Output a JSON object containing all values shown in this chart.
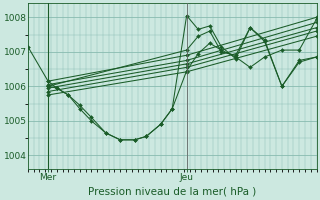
{
  "title": "Pression niveau de la mer( hPa )",
  "xlabel_mer": "Mer",
  "xlabel_jeu": "Jeu",
  "background_color": "#cce8e0",
  "grid_color": "#88bbb0",
  "line_color": "#1a5c28",
  "ylim": [
    1003.6,
    1008.4
  ],
  "yticks": [
    1004,
    1005,
    1006,
    1007,
    1008
  ],
  "xlim": [
    0,
    100
  ],
  "mer_x": 7,
  "jeu_x": 55,
  "lines": [
    {
      "x": [
        0,
        7,
        10,
        14,
        18,
        22,
        27,
        32,
        37,
        41,
        46,
        50,
        55,
        59,
        63,
        67,
        72,
        77,
        82,
        88,
        94,
        100
      ],
      "y": [
        1007.15,
        1006.15,
        1005.95,
        1005.75,
        1005.35,
        1005.0,
        1004.65,
        1004.45,
        1004.45,
        1004.55,
        1004.9,
        1005.35,
        1006.45,
        1006.95,
        1007.25,
        1007.05,
        1006.85,
        1006.55,
        1006.85,
        1007.05,
        1007.05,
        1007.95
      ]
    },
    {
      "x": [
        7,
        55,
        100
      ],
      "y": [
        1006.15,
        1006.9,
        1008.0
      ]
    },
    {
      "x": [
        7,
        55,
        100
      ],
      "y": [
        1006.05,
        1006.75,
        1007.85
      ]
    },
    {
      "x": [
        7,
        55,
        100
      ],
      "y": [
        1005.95,
        1006.65,
        1007.7
      ]
    },
    {
      "x": [
        7,
        55,
        100
      ],
      "y": [
        1005.85,
        1006.55,
        1007.6
      ]
    },
    {
      "x": [
        7,
        55,
        100
      ],
      "y": [
        1005.75,
        1006.42,
        1007.45
      ]
    },
    {
      "x": [
        7,
        10,
        14,
        18,
        22,
        27,
        32,
        37,
        41,
        46,
        50,
        55,
        59,
        63,
        67,
        72,
        77,
        82,
        88,
        94,
        100
      ],
      "y": [
        1006.0,
        1005.95,
        1005.75,
        1005.45,
        1005.1,
        1004.65,
        1004.45,
        1004.45,
        1004.55,
        1004.9,
        1005.35,
        1008.05,
        1007.65,
        1007.75,
        1007.15,
        1006.8,
        1007.7,
        1007.35,
        1006.0,
        1006.7,
        1006.85
      ]
    },
    {
      "x": [
        7,
        55,
        59,
        63,
        67,
        72,
        77,
        82,
        88,
        94,
        100
      ],
      "y": [
        1006.0,
        1007.05,
        1007.45,
        1007.6,
        1007.0,
        1006.9,
        1007.7,
        1007.3,
        1006.0,
        1006.75,
        1006.85
      ]
    }
  ],
  "vline_mer_color": "#1a5c28",
  "vline_jeu_color": "#666666",
  "title_fontsize": 7.5,
  "tick_fontsize": 6.5
}
